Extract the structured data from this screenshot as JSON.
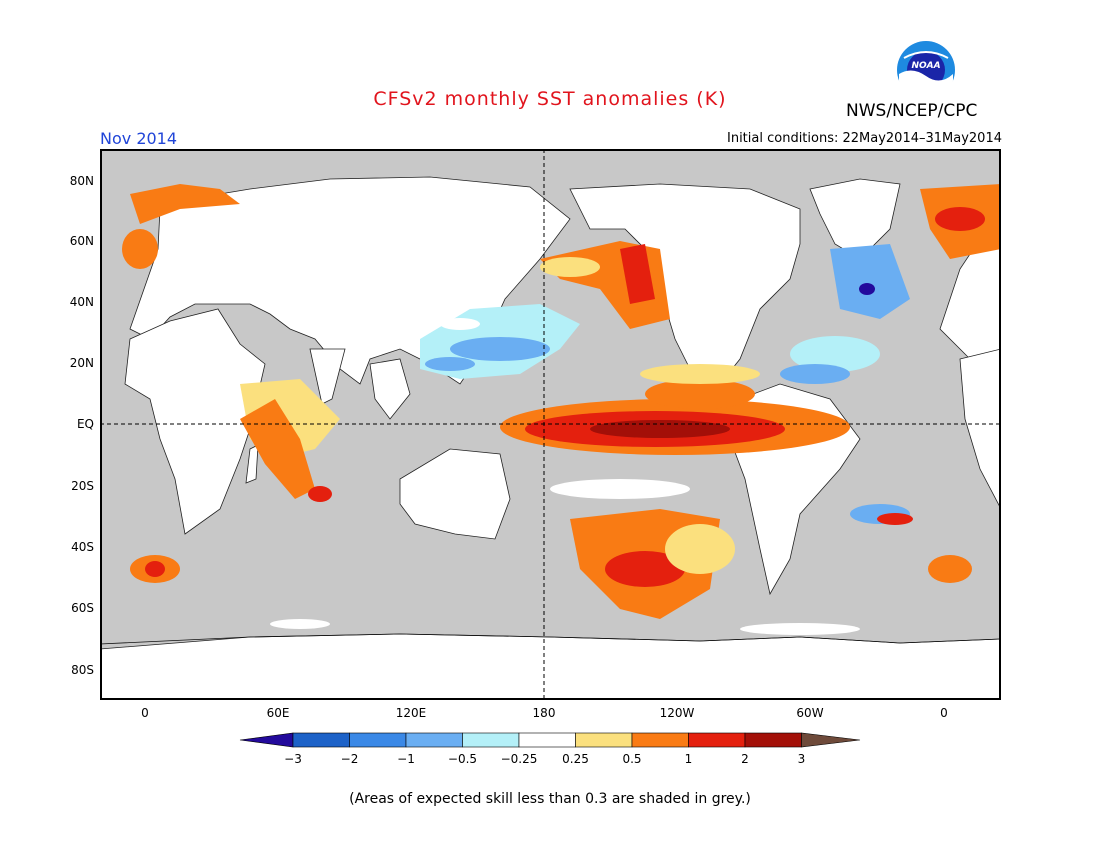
{
  "title": "CFSv2 monthly SST anomalies (K)",
  "agency": "NWS/NCEP/CPC",
  "logo_text": "NOAA",
  "month": "Nov 2014",
  "initial_conditions": "Initial conditions: 22May2014–31May2014",
  "note": "(Areas of expected skill less than 0.3 are shaded in grey.)",
  "map": {
    "projection": "equirectangular",
    "lon_range": [
      -20,
      380
    ],
    "lat_range": [
      -90,
      90
    ],
    "y_ticks": [
      "80N",
      "60N",
      "40N",
      "20N",
      "EQ",
      "20S",
      "40S",
      "60S",
      "80S"
    ],
    "x_ticks": [
      "0",
      "60E",
      "120E",
      "180",
      "120W",
      "60W",
      "0"
    ],
    "ocean_grey": "#c8c8c8",
    "land": "#ffffff",
    "reference_lines": [
      "Equator (dashed)",
      "180° meridian (dashed)"
    ]
  },
  "colorbar": {
    "labels": [
      "−3",
      "−2",
      "−1",
      "−0.5",
      "−0.25",
      "0.25",
      "0.5",
      "1",
      "2",
      "3"
    ],
    "colors": [
      "#230a9c",
      "#1d62c8",
      "#3a88e6",
      "#6aaef2",
      "#b4f0f8",
      "#ffffff",
      "#fbe07e",
      "#f97b14",
      "#e4200e",
      "#a30f08",
      "#6e4a3a"
    ]
  }
}
